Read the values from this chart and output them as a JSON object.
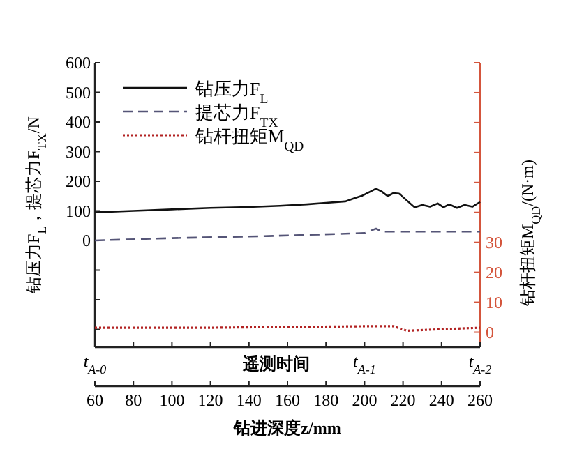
{
  "chart_data": {
    "type": "line",
    "xlabel": "钻进深度z/mm",
    "ylabel": "钻压力F$_{L}$，提芯力F$_{TX}$/N",
    "y2label": "钻杆扭矩M$_{QD}$/(N·m)",
    "x2label": "遥测时间",
    "xlim": [
      60,
      260
    ],
    "xticks": [
      60,
      80,
      100,
      120,
      140,
      160,
      180,
      200,
      220,
      240,
      260
    ],
    "annotations": [
      "t$_{A-0}$",
      "t$_{A-1}$",
      "t$_{A-2}$"
    ],
    "ylim": [
      -360,
      600
    ],
    "yticks": [
      {
        "value": -300,
        "label": null
      },
      {
        "value": -200,
        "label": null
      },
      {
        "value": -100,
        "label": null
      },
      0,
      100,
      200,
      300,
      400,
      500,
      600
    ],
    "y2lim": [
      -5,
      90
    ],
    "y2ticks": [
      0,
      10,
      20,
      30,
      {
        "value": 40,
        "label": null
      },
      {
        "value": 50,
        "label": null
      },
      {
        "value": 60,
        "label": null
      },
      {
        "value": 70,
        "label": null
      },
      {
        "value": 80,
        "label": null
      },
      {
        "value": 90,
        "label": null
      }
    ],
    "grid": false,
    "legend": "top left",
    "series": [
      {
        "name": "钻压力F$_{L}$",
        "color": "#111111",
        "line_style": "solid",
        "x": [
          60,
          80,
          100,
          120,
          140,
          156,
          170,
          180,
          190,
          199,
          203,
          206,
          209,
          212,
          215,
          218,
          222,
          226,
          230,
          234,
          238,
          241,
          244,
          248,
          252,
          256,
          260
        ],
        "values": [
          95,
          100,
          105,
          110,
          113,
          117,
          122,
          127,
          132,
          152,
          165,
          175,
          165,
          150,
          160,
          158,
          135,
          112,
          120,
          114,
          125,
          112,
          122,
          110,
          120,
          114,
          130
        ]
      },
      {
        "name": "提芯力F$_{TX}$",
        "color": "#555577",
        "line_style": "dashed",
        "x": [
          60,
          100,
          150,
          200,
          204,
          206,
          209,
          260
        ],
        "values": [
          0,
          8,
          15,
          25,
          35,
          40,
          30,
          30
        ]
      },
      {
        "name": "钻杆扭矩M$_{QD}$",
        "color": "#b22222",
        "line_style": "dotted",
        "axis": "y2",
        "x": [
          60,
          120,
          200,
          215,
          222,
          240,
          260
        ],
        "values": [
          1.5,
          1.5,
          2,
          2,
          0.5,
          1,
          1.5
        ]
      }
    ]
  }
}
